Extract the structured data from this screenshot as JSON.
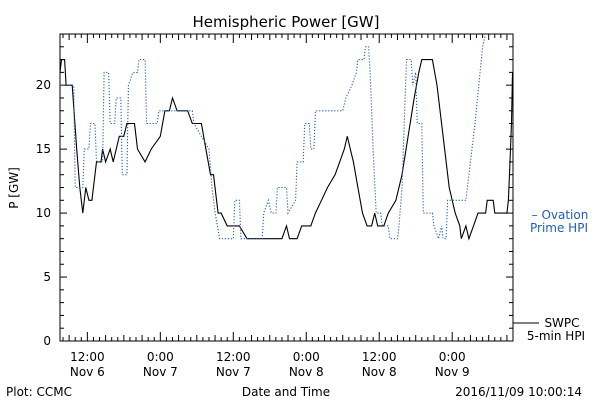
{
  "footer": {
    "plot_credit": "Plot: CCMC",
    "timestamp": "2016/11/09 10:00:14"
  },
  "chart_data": {
    "type": "line",
    "title": "Hemispheric Power [GW]",
    "xlabel": "Date and Time",
    "ylabel": "P [GW]",
    "xlim": [
      "2016-11-06 07:30",
      "2016-11-09 10:00"
    ],
    "ylim": [
      0,
      24
    ],
    "grid": false,
    "legend_position": "right",
    "y_ticks": [
      0,
      5,
      10,
      15,
      20
    ],
    "x_ticks": [
      {
        "time": "2016-11-06 12:00",
        "line1": "12:00",
        "line2": "Nov 6"
      },
      {
        "time": "2016-11-07 00:00",
        "line1": "0:00",
        "line2": "Nov 7"
      },
      {
        "time": "2016-11-07 12:00",
        "line1": "12:00",
        "line2": "Nov 7"
      },
      {
        "time": "2016-11-08 00:00",
        "line1": "0:00",
        "line2": "Nov 8"
      },
      {
        "time": "2016-11-08 12:00",
        "line1": "12:00",
        "line2": "Nov 8"
      },
      {
        "time": "2016-11-09 00:00",
        "line1": "0:00",
        "line2": "Nov 9"
      }
    ],
    "series": [
      {
        "name": "SWPC 5-min HPI",
        "color": "#000000",
        "style": "solid",
        "legend_lines": [
          "SWPC",
          "5-min HPI"
        ],
        "points": [
          [
            "2016-11-06 07:30",
            21
          ],
          [
            "2016-11-06 07:45",
            22
          ],
          [
            "2016-11-06 08:15",
            22
          ],
          [
            "2016-11-06 08:30",
            20
          ],
          [
            "2016-11-06 09:30",
            20
          ],
          [
            "2016-11-06 10:15",
            15
          ],
          [
            "2016-11-06 10:45",
            12
          ],
          [
            "2016-11-06 11:15",
            10
          ],
          [
            "2016-11-06 11:30",
            11
          ],
          [
            "2016-11-06 11:45",
            12
          ],
          [
            "2016-11-06 12:15",
            11
          ],
          [
            "2016-11-06 12:45",
            11
          ],
          [
            "2016-11-06 13:30",
            14
          ],
          [
            "2016-11-06 14:15",
            14
          ],
          [
            "2016-11-06 14:30",
            15
          ],
          [
            "2016-11-06 15:00",
            14
          ],
          [
            "2016-11-06 15:45",
            15
          ],
          [
            "2016-11-06 16:15",
            14
          ],
          [
            "2016-11-06 17:15",
            16
          ],
          [
            "2016-11-06 18:00",
            16
          ],
          [
            "2016-11-06 18:30",
            17
          ],
          [
            "2016-11-06 19:45",
            17
          ],
          [
            "2016-11-06 20:15",
            15
          ],
          [
            "2016-11-06 21:30",
            14
          ],
          [
            "2016-11-06 22:30",
            15
          ],
          [
            "2016-11-07 00:00",
            16
          ],
          [
            "2016-11-07 00:45",
            18
          ],
          [
            "2016-11-07 01:30",
            18
          ],
          [
            "2016-11-07 02:00",
            19
          ],
          [
            "2016-11-07 02:45",
            18
          ],
          [
            "2016-11-07 03:30",
            18
          ],
          [
            "2016-11-07 04:30",
            18
          ],
          [
            "2016-11-07 05:15",
            17
          ],
          [
            "2016-11-07 06:45",
            17
          ],
          [
            "2016-11-07 07:30",
            15
          ],
          [
            "2016-11-07 08:15",
            13
          ],
          [
            "2016-11-07 08:45",
            13
          ],
          [
            "2016-11-07 09:30",
            10
          ],
          [
            "2016-11-07 10:00",
            10
          ],
          [
            "2016-11-07 11:00",
            9
          ],
          [
            "2016-11-07 13:00",
            9
          ],
          [
            "2016-11-07 14:15",
            8
          ],
          [
            "2016-11-07 20:00",
            8
          ],
          [
            "2016-11-07 20:45",
            9
          ],
          [
            "2016-11-07 21:15",
            8
          ],
          [
            "2016-11-07 22:30",
            8
          ],
          [
            "2016-11-07 23:15",
            9
          ],
          [
            "2016-11-08 00:45",
            9
          ],
          [
            "2016-11-08 01:30",
            10
          ],
          [
            "2016-11-08 02:30",
            11
          ],
          [
            "2016-11-08 03:30",
            12
          ],
          [
            "2016-11-08 04:45",
            13
          ],
          [
            "2016-11-08 05:30",
            14
          ],
          [
            "2016-11-08 06:15",
            15
          ],
          [
            "2016-11-08 06:45",
            16
          ],
          [
            "2016-11-08 07:15",
            15
          ],
          [
            "2016-11-08 07:45",
            14
          ],
          [
            "2016-11-08 08:30",
            12
          ],
          [
            "2016-11-08 09:15",
            10
          ],
          [
            "2016-11-08 10:00",
            9
          ],
          [
            "2016-11-08 10:45",
            9
          ],
          [
            "2016-11-08 11:15",
            10
          ],
          [
            "2016-11-08 11:45",
            9
          ],
          [
            "2016-11-08 12:45",
            9
          ],
          [
            "2016-11-08 13:30",
            10
          ],
          [
            "2016-11-08 14:45",
            11
          ],
          [
            "2016-11-08 15:45",
            13
          ],
          [
            "2016-11-08 16:45",
            16
          ],
          [
            "2016-11-08 17:45",
            19
          ],
          [
            "2016-11-08 18:30",
            21
          ],
          [
            "2016-11-08 19:00",
            22
          ],
          [
            "2016-11-08 20:45",
            22
          ],
          [
            "2016-11-08 21:30",
            20
          ],
          [
            "2016-11-08 22:30",
            16
          ],
          [
            "2016-11-08 23:30",
            12
          ],
          [
            "2016-11-09 00:30",
            10
          ],
          [
            "2016-11-09 01:15",
            9
          ],
          [
            "2016-11-09 01:30",
            8
          ],
          [
            "2016-11-09 02:15",
            9
          ],
          [
            "2016-11-09 02:45",
            8
          ],
          [
            "2016-11-09 03:30",
            9
          ],
          [
            "2016-11-09 04:15",
            10
          ],
          [
            "2016-11-09 05:30",
            10
          ],
          [
            "2016-11-09 05:45",
            11
          ],
          [
            "2016-11-09 06:45",
            11
          ],
          [
            "2016-11-09 07:00",
            10
          ],
          [
            "2016-11-09 09:00",
            10
          ],
          [
            "2016-11-09 09:15",
            11
          ],
          [
            "2016-11-09 09:30",
            14
          ],
          [
            "2016-11-09 09:45",
            17
          ],
          [
            "2016-11-09 09:55",
            21
          ]
        ]
      },
      {
        "name": "Ovation Prime HPI",
        "color": "#1f5fbf",
        "style": "dotted",
        "legend_lines": [
          "– Ovation",
          "Prime HPI"
        ],
        "points": [
          [
            "2016-11-06 07:30",
            20
          ],
          [
            "2016-11-06 09:45",
            20
          ],
          [
            "2016-11-06 10:00",
            12
          ],
          [
            "2016-11-06 11:15",
            12
          ],
          [
            "2016-11-06 11:30",
            15
          ],
          [
            "2016-11-06 12:15",
            15
          ],
          [
            "2016-11-06 12:30",
            17
          ],
          [
            "2016-11-06 13:15",
            17
          ],
          [
            "2016-11-06 13:30",
            14
          ],
          [
            "2016-11-06 14:30",
            14
          ],
          [
            "2016-11-06 14:45",
            21
          ],
          [
            "2016-11-06 15:30",
            21
          ],
          [
            "2016-11-06 15:45",
            17
          ],
          [
            "2016-11-06 16:30",
            17
          ],
          [
            "2016-11-06 16:45",
            19
          ],
          [
            "2016-11-06 17:30",
            19
          ],
          [
            "2016-11-06 17:45",
            13
          ],
          [
            "2016-11-06 18:30",
            13
          ],
          [
            "2016-11-06 18:45",
            20
          ],
          [
            "2016-11-06 19:30",
            21
          ],
          [
            "2016-11-06 20:15",
            21
          ],
          [
            "2016-11-06 20:30",
            22
          ],
          [
            "2016-11-06 21:30",
            22
          ],
          [
            "2016-11-06 21:45",
            17
          ],
          [
            "2016-11-06 23:30",
            17
          ],
          [
            "2016-11-06 23:45",
            18
          ],
          [
            "2016-11-07 05:15",
            18
          ],
          [
            "2016-11-07 05:30",
            17
          ],
          [
            "2016-11-07 08:00",
            15
          ],
          [
            "2016-11-07 08:30",
            12
          ],
          [
            "2016-11-07 09:00",
            10
          ],
          [
            "2016-11-07 09:45",
            8
          ],
          [
            "2016-11-07 12:00",
            8
          ],
          [
            "2016-11-07 12:15",
            11
          ],
          [
            "2016-11-07 13:00",
            11
          ],
          [
            "2016-11-07 13:15",
            8
          ],
          [
            "2016-11-07 16:45",
            8
          ],
          [
            "2016-11-07 17:00",
            10
          ],
          [
            "2016-11-07 17:45",
            11
          ],
          [
            "2016-11-07 18:15",
            10
          ],
          [
            "2016-11-07 19:00",
            10
          ],
          [
            "2016-11-07 19:15",
            12
          ],
          [
            "2016-11-07 20:45",
            12
          ],
          [
            "2016-11-07 21:00",
            10
          ],
          [
            "2016-11-07 22:15",
            11
          ],
          [
            "2016-11-07 22:30",
            14
          ],
          [
            "2016-11-07 23:30",
            14
          ],
          [
            "2016-11-07 23:45",
            17
          ],
          [
            "2016-11-08 00:30",
            17
          ],
          [
            "2016-11-08 00:45",
            15
          ],
          [
            "2016-11-08 01:15",
            15
          ],
          [
            "2016-11-08 01:30",
            18
          ],
          [
            "2016-11-08 06:00",
            18
          ],
          [
            "2016-11-08 06:30",
            19
          ],
          [
            "2016-11-08 07:30",
            20
          ],
          [
            "2016-11-08 08:15",
            21
          ],
          [
            "2016-11-08 08:30",
            22
          ],
          [
            "2016-11-08 09:30",
            22
          ],
          [
            "2016-11-08 09:45",
            23
          ],
          [
            "2016-11-08 10:15",
            23
          ],
          [
            "2016-11-08 10:30",
            21
          ],
          [
            "2016-11-08 11:00",
            15
          ],
          [
            "2016-11-08 11:30",
            10
          ],
          [
            "2016-11-08 12:15",
            10
          ],
          [
            "2016-11-08 12:30",
            9
          ],
          [
            "2016-11-08 13:30",
            9
          ],
          [
            "2016-11-08 13:45",
            8
          ],
          [
            "2016-11-08 15:00",
            8
          ],
          [
            "2016-11-08 15:15",
            9
          ],
          [
            "2016-11-08 15:45",
            12
          ],
          [
            "2016-11-08 16:15",
            19
          ],
          [
            "2016-11-08 16:30",
            22
          ],
          [
            "2016-11-08 17:15",
            22
          ],
          [
            "2016-11-08 17:30",
            20
          ],
          [
            "2016-11-08 18:00",
            21
          ],
          [
            "2016-11-08 18:15",
            17
          ],
          [
            "2016-11-08 19:00",
            17
          ],
          [
            "2016-11-08 19:15",
            10
          ],
          [
            "2016-11-08 20:45",
            10
          ],
          [
            "2016-11-08 21:00",
            9
          ],
          [
            "2016-11-08 21:45",
            8
          ],
          [
            "2016-11-08 22:15",
            9
          ],
          [
            "2016-11-08 22:30",
            8
          ],
          [
            "2016-11-08 23:00",
            8
          ],
          [
            "2016-11-08 23:15",
            11
          ],
          [
            "2016-11-09 02:15",
            11
          ],
          [
            "2016-11-09 02:30",
            12
          ],
          [
            "2016-11-09 03:45",
            17
          ],
          [
            "2016-11-09 05:00",
            23
          ],
          [
            "2016-11-09 05:30",
            24
          ]
        ]
      }
    ]
  }
}
